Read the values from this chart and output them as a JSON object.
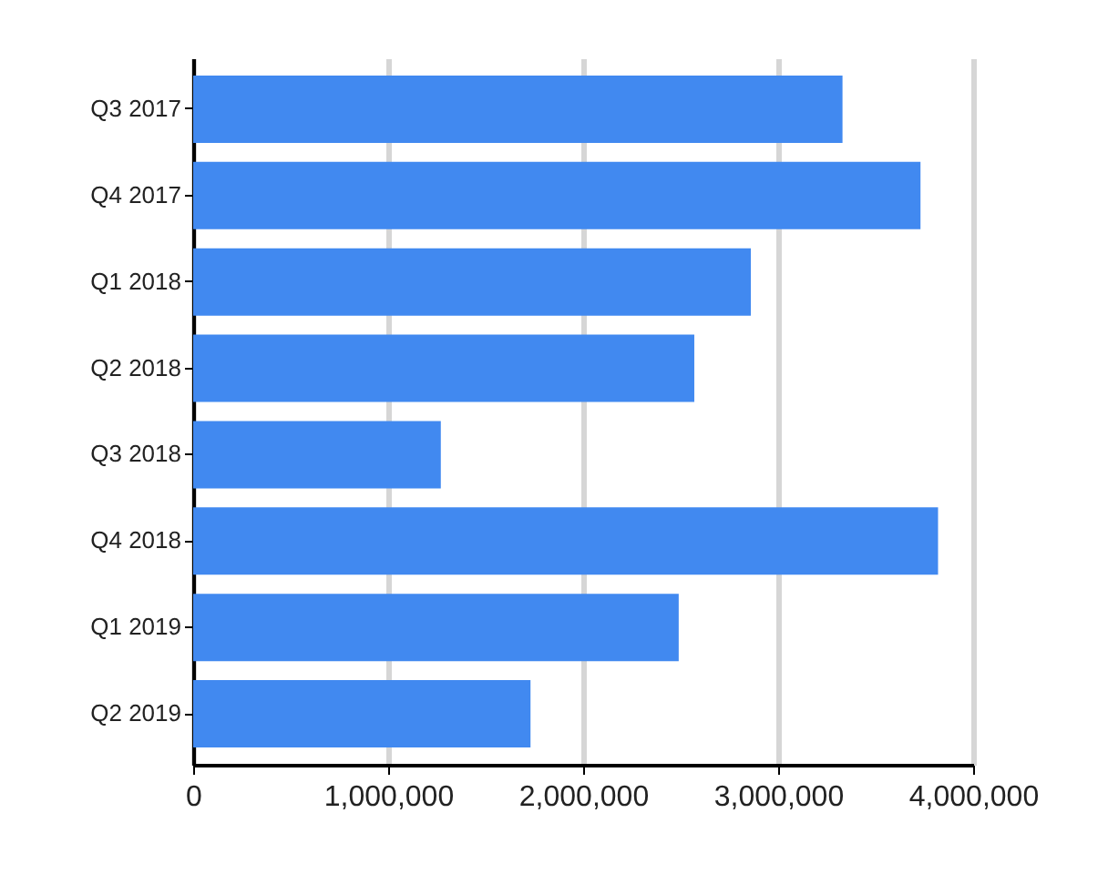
{
  "chart_data": {
    "type": "bar",
    "orientation": "horizontal",
    "categories": [
      "Q3 2017",
      "Q4 2017",
      "Q1 2018",
      "Q2 2018",
      "Q3 2018",
      "Q4 2018",
      "Q1 2019",
      "Q2 2019"
    ],
    "values": [
      3330000,
      3730000,
      2860000,
      2570000,
      1270000,
      3820000,
      2490000,
      1730000
    ],
    "color": "#4189f0",
    "xlim": [
      0,
      4000000
    ],
    "xticks": [
      0,
      {
        "value": 1000000,
        "label": "1,000,000"
      },
      {
        "value": 2000000,
        "label": "2,000,000"
      },
      {
        "value": 3000000,
        "label": "3,000,000"
      },
      {
        "value": 4000000,
        "label": "4,000,000"
      }
    ],
    "grid": "x"
  }
}
